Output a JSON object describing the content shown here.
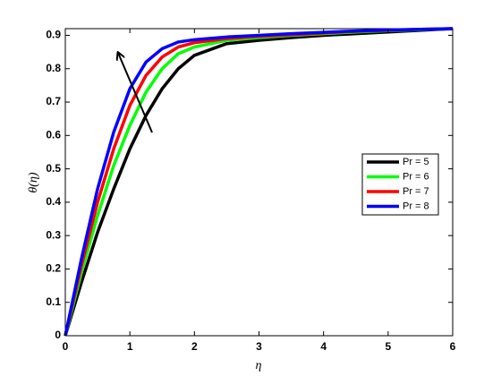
{
  "chart_data": {
    "type": "line",
    "xlabel": "η",
    "ylabel": "θ(η)",
    "x": [
      0,
      0.25,
      0.5,
      0.75,
      1,
      1.25,
      1.5,
      1.75,
      2,
      2.5,
      3,
      3.5,
      4,
      4.5,
      5,
      5.5,
      6
    ],
    "series": [
      {
        "name": "Pr = 5",
        "color": "#000000",
        "values": [
          0,
          0.16,
          0.31,
          0.44,
          0.56,
          0.66,
          0.74,
          0.8,
          0.84,
          0.875,
          0.885,
          0.893,
          0.9,
          0.905,
          0.91,
          0.915,
          0.92
        ]
      },
      {
        "name": "Pr = 6",
        "color": "#00ff00",
        "values": [
          0,
          0.19,
          0.36,
          0.51,
          0.63,
          0.73,
          0.8,
          0.845,
          0.865,
          0.885,
          0.893,
          0.9,
          0.905,
          0.91,
          0.914,
          0.917,
          0.92
        ]
      },
      {
        "name": "Pr = 7",
        "color": "#ff0000",
        "values": [
          0,
          0.21,
          0.4,
          0.56,
          0.69,
          0.78,
          0.835,
          0.865,
          0.878,
          0.89,
          0.897,
          0.902,
          0.907,
          0.912,
          0.915,
          0.918,
          0.92
        ]
      },
      {
        "name": "Pr = 8",
        "color": "#0000ff",
        "values": [
          0,
          0.23,
          0.44,
          0.61,
          0.74,
          0.82,
          0.86,
          0.88,
          0.887,
          0.895,
          0.9,
          0.905,
          0.909,
          0.913,
          0.916,
          0.918,
          0.92
        ]
      }
    ],
    "xlim": [
      0,
      6
    ],
    "xticks": [
      0,
      1,
      2,
      3,
      4,
      5,
      6
    ],
    "ylim": [
      0,
      0.92
    ],
    "yticks": [
      0,
      0.1,
      0.2,
      0.3,
      0.4,
      0.5,
      0.6,
      0.7,
      0.8,
      0.9
    ],
    "grid": false,
    "legend": "east"
  }
}
